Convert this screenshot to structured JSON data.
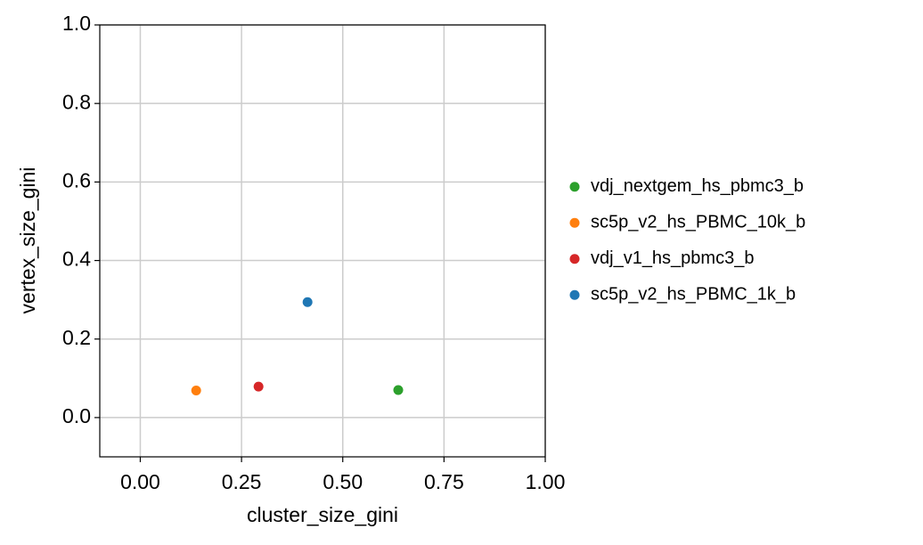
{
  "chart_data": {
    "type": "scatter",
    "xlabel": "cluster_size_gini",
    "ylabel": "vertex_size_gini",
    "xlim": [
      -0.1,
      1.0
    ],
    "ylim": [
      -0.1,
      1.0
    ],
    "xticks": [
      {
        "value": 0,
        "label": "0.00"
      },
      0.25,
      {
        "value": 0.5,
        "label": "0.50"
      },
      0.75,
      {
        "value": 1,
        "label": "1.00"
      }
    ],
    "yticks": [
      {
        "value": 0,
        "label": "0.0"
      },
      0.2,
      0.4,
      0.6,
      0.8,
      {
        "value": 1,
        "label": "1.0"
      }
    ],
    "grid": true,
    "legend": "right",
    "series": [
      {
        "name": "vdj_nextgem_hs_pbmc3_b",
        "color": "#2ca02c",
        "x": [
          0.637
        ],
        "values": [
          0.07
        ]
      },
      {
        "name": "sc5p_v2_hs_PBMC_10k_b",
        "color": "#ff7f0e",
        "x": [
          0.138
        ],
        "values": [
          0.069
        ]
      },
      {
        "name": "vdj_v1_hs_pbmc3_b",
        "color": "#d62728",
        "x": [
          0.292
        ],
        "values": [
          0.079
        ]
      },
      {
        "name": "sc5p_v2_hs_PBMC_1k_b",
        "color": "#1f77b4",
        "x": [
          0.413
        ],
        "values": [
          0.294
        ]
      }
    ]
  }
}
